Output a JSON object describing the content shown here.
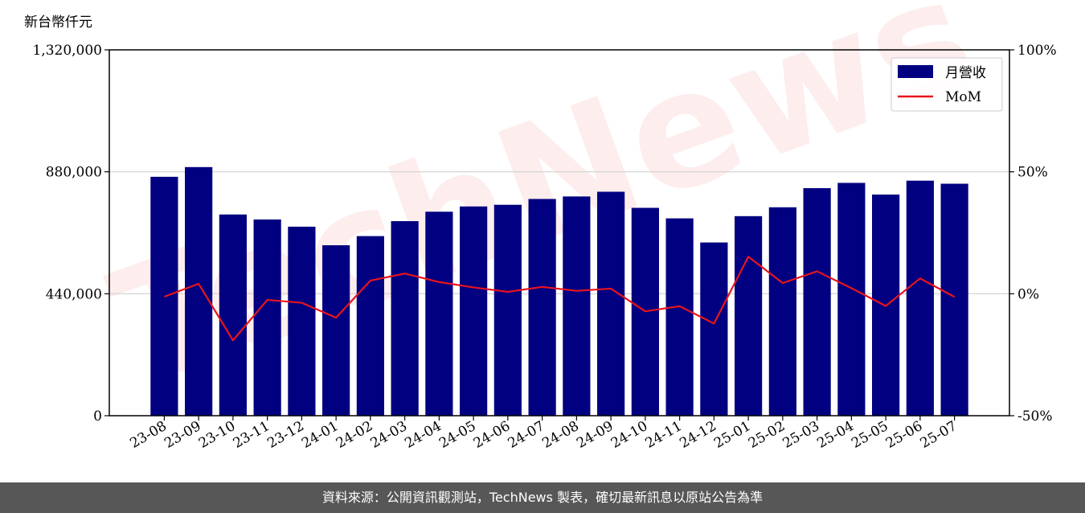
{
  "chart_data": {
    "type": "bar",
    "categories": [
      "23-08",
      "23-09",
      "23-10",
      "23-11",
      "23-12",
      "24-01",
      "24-02",
      "24-03",
      "24-04",
      "24-05",
      "24-06",
      "24-07",
      "24-08",
      "24-09",
      "24-10",
      "24-11",
      "24-12",
      "25-01",
      "25-02",
      "25-03",
      "25-04",
      "25-05",
      "25-06",
      "25-07"
    ],
    "series": [
      {
        "name": "月營收",
        "axis": "left",
        "color": "#000080",
        "values": [
          862000,
          897000,
          726000,
          708000,
          682000,
          615000,
          648000,
          702000,
          736000,
          755000,
          761000,
          782000,
          791000,
          808000,
          750000,
          712000,
          625000,
          720000,
          752000,
          821000,
          840000,
          798000,
          848000,
          837000
        ]
      },
      {
        "name": "MoM",
        "axis": "right",
        "color": "#e8141c",
        "values": [
          -1.2,
          4.1,
          -19.1,
          -2.5,
          -3.7,
          -9.8,
          5.4,
          8.3,
          4.8,
          2.6,
          0.8,
          2.8,
          1.2,
          2.1,
          -7.2,
          -5.1,
          -12.2,
          15.2,
          4.4,
          9.2,
          2.3,
          -5.0,
          6.3,
          -1.3
        ]
      }
    ],
    "y_left": {
      "unit_label": "新台幣仟元",
      "ylim": [
        0,
        1320000
      ],
      "ticks": [
        0,
        440000,
        880000,
        1320000
      ],
      "tick_labels": [
        "0",
        "440,000",
        "880,000",
        "1,320,000"
      ]
    },
    "y_right": {
      "ylim": [
        -50,
        100
      ],
      "ticks": [
        -50,
        0,
        50,
        100
      ],
      "tick_labels": [
        "-50%",
        "0%",
        "50%",
        "100%"
      ]
    },
    "grid": "horizontal",
    "legend_position": "top-right",
    "watermark": "TechNews"
  },
  "footer": {
    "source_text": "資料來源：公開資訊觀測站，TechNews 製表，確切最新訊息以原站公告為準"
  }
}
